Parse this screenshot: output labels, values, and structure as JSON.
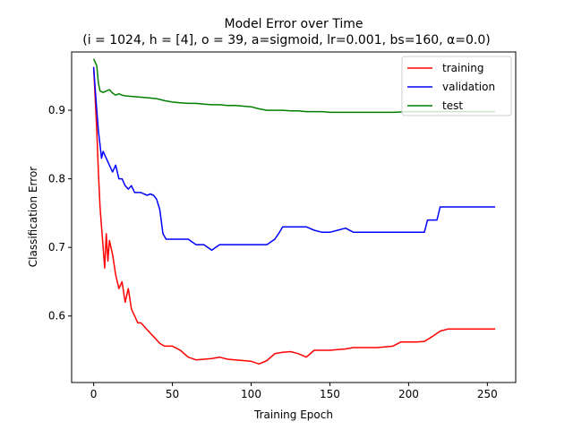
{
  "chart_data": {
    "type": "line",
    "title": "Model Error over Time",
    "subtitle": "(i = 1024, h = [4], o = 39, a=sigmoid, lr=0.001, bs=160, α=0.0)",
    "xlabel": "Training Epoch",
    "ylabel": "Classification Error",
    "xlim": [
      -14,
      268
    ],
    "ylim": [
      0.503,
      0.985
    ],
    "xticks": [
      0,
      50,
      100,
      150,
      200,
      250
    ],
    "yticks": [
      0.6,
      0.7,
      0.8,
      0.9
    ],
    "xtick_labels": [
      "0",
      "50",
      "100",
      "150",
      "200",
      "250"
    ],
    "ytick_labels": [
      "0.6",
      "0.7",
      "0.8",
      "0.9"
    ],
    "grid": false,
    "legend_position": "top-right",
    "series": [
      {
        "name": "training",
        "color": "#ff0000",
        "points": [
          [
            0,
            0.963
          ],
          [
            2,
            0.87
          ],
          [
            3,
            0.81
          ],
          [
            4,
            0.76
          ],
          [
            5,
            0.73
          ],
          [
            6,
            0.7
          ],
          [
            7,
            0.67
          ],
          [
            8,
            0.72
          ],
          [
            9,
            0.68
          ],
          [
            10,
            0.71
          ],
          [
            12,
            0.69
          ],
          [
            14,
            0.66
          ],
          [
            16,
            0.64
          ],
          [
            18,
            0.65
          ],
          [
            20,
            0.62
          ],
          [
            22,
            0.64
          ],
          [
            24,
            0.61
          ],
          [
            26,
            0.6
          ],
          [
            28,
            0.59
          ],
          [
            30,
            0.59
          ],
          [
            32,
            0.585
          ],
          [
            34,
            0.58
          ],
          [
            36,
            0.575
          ],
          [
            38,
            0.57
          ],
          [
            40,
            0.565
          ],
          [
            42,
            0.56
          ],
          [
            45,
            0.556
          ],
          [
            50,
            0.556
          ],
          [
            55,
            0.55
          ],
          [
            60,
            0.54
          ],
          [
            65,
            0.536
          ],
          [
            70,
            0.537
          ],
          [
            75,
            0.538
          ],
          [
            80,
            0.54
          ],
          [
            85,
            0.537
          ],
          [
            90,
            0.536
          ],
          [
            95,
            0.535
          ],
          [
            100,
            0.534
          ],
          [
            105,
            0.53
          ],
          [
            110,
            0.535
          ],
          [
            115,
            0.545
          ],
          [
            120,
            0.547
          ],
          [
            125,
            0.548
          ],
          [
            130,
            0.545
          ],
          [
            135,
            0.54
          ],
          [
            140,
            0.55
          ],
          [
            145,
            0.55
          ],
          [
            150,
            0.55
          ],
          [
            155,
            0.551
          ],
          [
            160,
            0.552
          ],
          [
            165,
            0.554
          ],
          [
            170,
            0.554
          ],
          [
            175,
            0.554
          ],
          [
            180,
            0.554
          ],
          [
            185,
            0.555
          ],
          [
            190,
            0.556
          ],
          [
            195,
            0.562
          ],
          [
            200,
            0.562
          ],
          [
            205,
            0.562
          ],
          [
            210,
            0.563
          ],
          [
            215,
            0.57
          ],
          [
            220,
            0.578
          ],
          [
            225,
            0.581
          ],
          [
            255,
            0.581
          ]
        ]
      },
      {
        "name": "validation",
        "color": "#0000ff",
        "points": [
          [
            0,
            0.963
          ],
          [
            1,
            0.93
          ],
          [
            2,
            0.9
          ],
          [
            3,
            0.87
          ],
          [
            4,
            0.85
          ],
          [
            5,
            0.83
          ],
          [
            6,
            0.84
          ],
          [
            8,
            0.83
          ],
          [
            10,
            0.82
          ],
          [
            12,
            0.81
          ],
          [
            14,
            0.82
          ],
          [
            16,
            0.8
          ],
          [
            18,
            0.8
          ],
          [
            20,
            0.79
          ],
          [
            22,
            0.785
          ],
          [
            24,
            0.79
          ],
          [
            26,
            0.78
          ],
          [
            28,
            0.78
          ],
          [
            30,
            0.78
          ],
          [
            32,
            0.778
          ],
          [
            34,
            0.776
          ],
          [
            36,
            0.778
          ],
          [
            38,
            0.776
          ],
          [
            40,
            0.77
          ],
          [
            42,
            0.755
          ],
          [
            44,
            0.72
          ],
          [
            46,
            0.712
          ],
          [
            50,
            0.712
          ],
          [
            55,
            0.712
          ],
          [
            60,
            0.712
          ],
          [
            65,
            0.704
          ],
          [
            70,
            0.704
          ],
          [
            75,
            0.696
          ],
          [
            80,
            0.704
          ],
          [
            85,
            0.704
          ],
          [
            90,
            0.704
          ],
          [
            95,
            0.704
          ],
          [
            100,
            0.704
          ],
          [
            105,
            0.704
          ],
          [
            110,
            0.704
          ],
          [
            115,
            0.712
          ],
          [
            118,
            0.722
          ],
          [
            120,
            0.73
          ],
          [
            125,
            0.73
          ],
          [
            130,
            0.73
          ],
          [
            135,
            0.73
          ],
          [
            140,
            0.725
          ],
          [
            145,
            0.722
          ],
          [
            150,
            0.722
          ],
          [
            155,
            0.725
          ],
          [
            160,
            0.728
          ],
          [
            165,
            0.722
          ],
          [
            170,
            0.722
          ],
          [
            180,
            0.722
          ],
          [
            190,
            0.722
          ],
          [
            200,
            0.722
          ],
          [
            210,
            0.722
          ],
          [
            212,
            0.74
          ],
          [
            215,
            0.74
          ],
          [
            218,
            0.74
          ],
          [
            220,
            0.759
          ],
          [
            255,
            0.759
          ]
        ]
      },
      {
        "name": "test",
        "color": "#008000",
        "points": [
          [
            0,
            0.975
          ],
          [
            2,
            0.965
          ],
          [
            3,
            0.94
          ],
          [
            4,
            0.928
          ],
          [
            6,
            0.926
          ],
          [
            8,
            0.928
          ],
          [
            10,
            0.93
          ],
          [
            12,
            0.925
          ],
          [
            14,
            0.922
          ],
          [
            16,
            0.924
          ],
          [
            18,
            0.922
          ],
          [
            20,
            0.921
          ],
          [
            25,
            0.92
          ],
          [
            30,
            0.919
          ],
          [
            35,
            0.918
          ],
          [
            40,
            0.917
          ],
          [
            45,
            0.914
          ],
          [
            50,
            0.912
          ],
          [
            55,
            0.911
          ],
          [
            60,
            0.91
          ],
          [
            65,
            0.91
          ],
          [
            70,
            0.909
          ],
          [
            75,
            0.908
          ],
          [
            80,
            0.908
          ],
          [
            85,
            0.907
          ],
          [
            90,
            0.907
          ],
          [
            95,
            0.906
          ],
          [
            100,
            0.905
          ],
          [
            105,
            0.902
          ],
          [
            110,
            0.9
          ],
          [
            115,
            0.9
          ],
          [
            120,
            0.9
          ],
          [
            125,
            0.899
          ],
          [
            130,
            0.899
          ],
          [
            135,
            0.898
          ],
          [
            140,
            0.898
          ],
          [
            145,
            0.898
          ],
          [
            150,
            0.897
          ],
          [
            160,
            0.897
          ],
          [
            170,
            0.897
          ],
          [
            180,
            0.897
          ],
          [
            190,
            0.897
          ],
          [
            200,
            0.898
          ],
          [
            210,
            0.898
          ],
          [
            220,
            0.898
          ],
          [
            230,
            0.898
          ],
          [
            240,
            0.898
          ],
          [
            250,
            0.898
          ],
          [
            255,
            0.898
          ]
        ]
      }
    ]
  }
}
